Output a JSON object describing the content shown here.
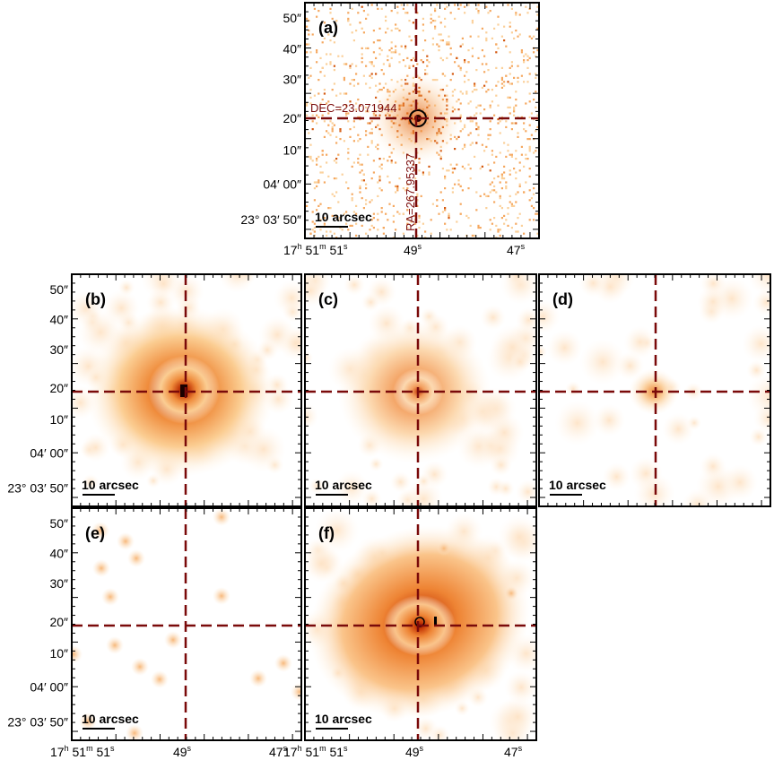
{
  "figure": {
    "panels": [
      {
        "id": "a",
        "label": "(a)",
        "scale_label": "10 arcsec",
        "style": "noisy",
        "annotations": {
          "dec": "DEC=23.071944",
          "ra": "RA=267.95337"
        }
      },
      {
        "id": "b",
        "label": "(b)",
        "scale_label": "10 arcsec",
        "style": "strong"
      },
      {
        "id": "c",
        "label": "(c)",
        "scale_label": "10 arcsec",
        "style": "medium"
      },
      {
        "id": "d",
        "label": "(d)",
        "scale_label": "10 arcsec",
        "style": "weak"
      },
      {
        "id": "e",
        "label": "(e)",
        "scale_label": "10 arcsec",
        "style": "spots"
      },
      {
        "id": "f",
        "label": "(f)",
        "scale_label": "10 arcsec",
        "style": "psf"
      }
    ],
    "y_ticks": [
      "50″",
      "40″",
      "30″",
      "20″",
      "10″",
      "04′ 00″",
      "23° 03′ 50″"
    ],
    "x_ticks": [
      "17h 51m 51s",
      "49s",
      "47s"
    ],
    "x_tick_parts": {
      "first": {
        "h": "17",
        "h_u": "h",
        "m": "51",
        "m_u": "m",
        "s": "51",
        "s_u": "s"
      },
      "mid": {
        "v": "49",
        "u": "s"
      },
      "last": {
        "v": "47",
        "u": "s"
      }
    },
    "colors": {
      "crosshair": "#7a0a0a",
      "frame": "#000000",
      "colormap_low": "#ffffff",
      "colormap_high": "#8b1a00"
    }
  }
}
